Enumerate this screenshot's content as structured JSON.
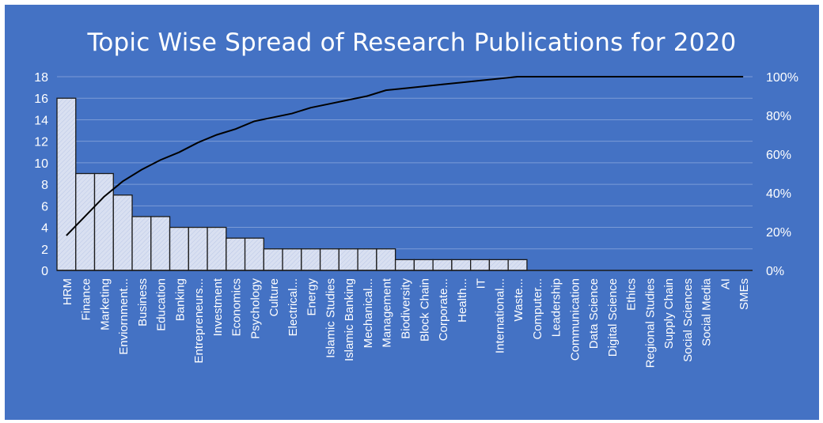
{
  "chart_data": {
    "type": "bar",
    "title": "Topic Wise Spread of Research Publications for 2020",
    "categories": [
      "HRM",
      "Finance",
      "Marketing",
      "Enviornment...",
      "Business",
      "Education",
      "Banking",
      "Entrepreneurs...",
      "Investment",
      "Economics",
      "Psychology",
      "Culture",
      "Electrical...",
      "Energy",
      "Islamic Studies",
      "Islamic Banking",
      "Mechanical...",
      "Management",
      "Biodiversity",
      "Block Chain",
      "Corporate...",
      "Health...",
      "IT",
      "International...",
      "Waste...",
      "Computer...",
      "Leadership",
      "Communication",
      "Data Science",
      "Digital Science",
      "Ethics",
      "Regional Studies",
      "Supply Chain",
      "Social Sciences",
      "Social Media",
      "AI",
      "SMEs"
    ],
    "values": [
      16,
      9,
      9,
      7,
      5,
      5,
      4,
      4,
      4,
      3,
      3,
      2,
      2,
      2,
      2,
      2,
      2,
      2,
      1,
      1,
      1,
      1,
      1,
      1,
      1,
      0,
      0,
      0,
      0,
      0,
      0,
      0,
      0,
      0,
      0,
      0,
      0
    ],
    "cumulative_percent": [
      18,
      28,
      38,
      46,
      52,
      57,
      61,
      66,
      70,
      73,
      77,
      79,
      81,
      84,
      86,
      88,
      90,
      93,
      94,
      95,
      96,
      97,
      98,
      99,
      100,
      100,
      100,
      100,
      100,
      100,
      100,
      100,
      100,
      100,
      100,
      100,
      100
    ],
    "ylim": [
      0,
      18
    ],
    "yticks": [
      "0",
      "2",
      "4",
      "6",
      "8",
      "10",
      "12",
      "14",
      "16",
      "18"
    ],
    "y2lim": [
      0,
      100
    ],
    "y2ticks": [
      "0%",
      "20%",
      "40%",
      "60%",
      "80%",
      "100%"
    ],
    "grid": true,
    "legend": "none",
    "colors": {
      "background": "#4472c4",
      "bar_fill": "#d9e0f1",
      "bar_stroke": "#1a1a1a",
      "line": "#000000",
      "text": "#ffffff",
      "grid": "#7b9bd6"
    }
  }
}
